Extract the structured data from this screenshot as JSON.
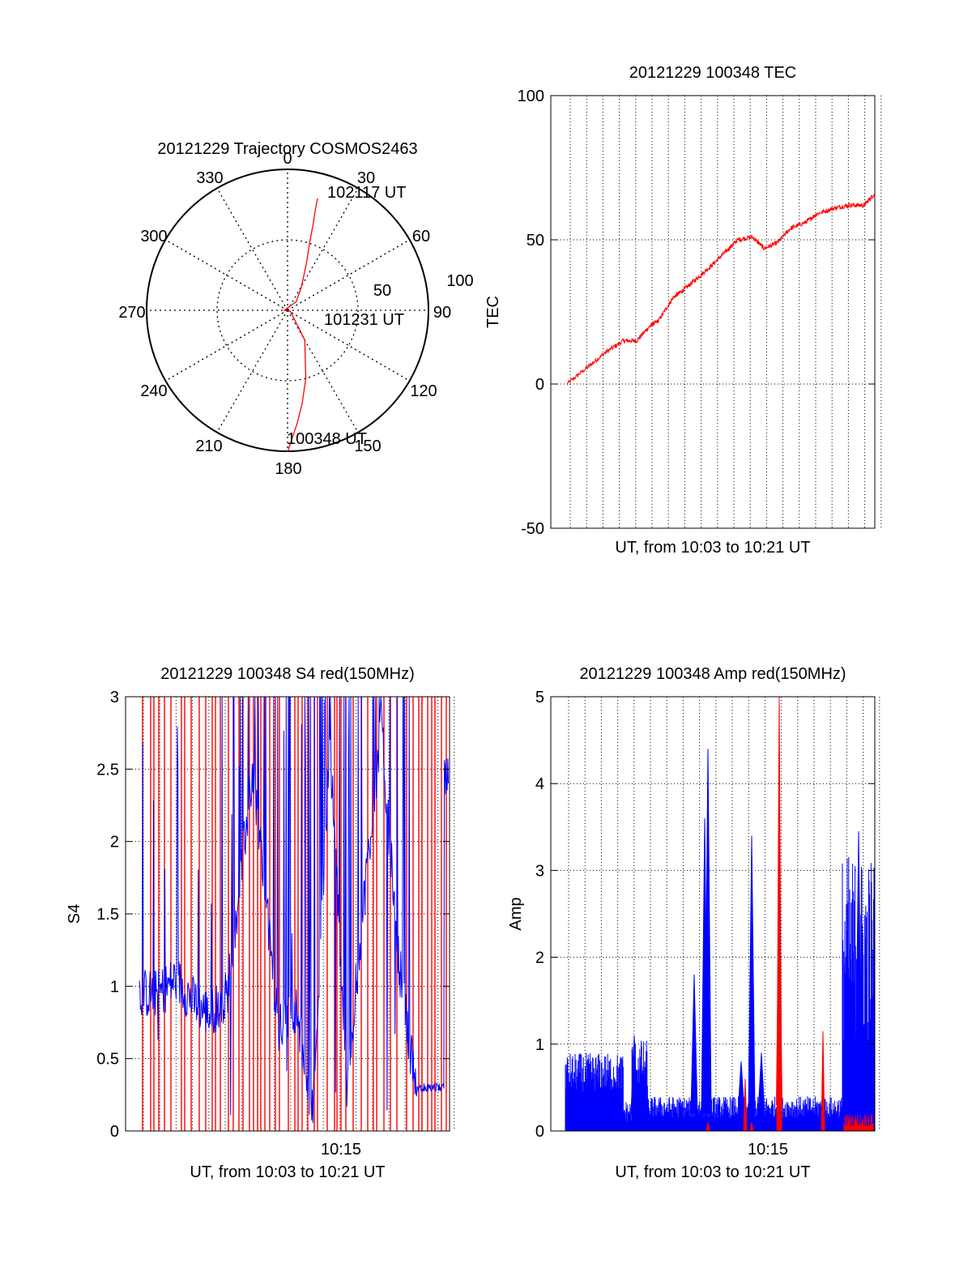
{
  "colors": {
    "red": "#ff0000",
    "blue": "#0000ff",
    "axis": "#000000"
  },
  "chart_data": [
    {
      "type": "scatter",
      "subtype": "polar",
      "title": "20121229 Trajectory COSMOS2463",
      "angle_labels": [
        "0",
        "30",
        "60",
        "90",
        "120",
        "150",
        "180",
        "210",
        "240",
        "270",
        "300",
        "330"
      ],
      "radius_labels": [
        "50",
        "100"
      ],
      "grid": true,
      "series": [
        {
          "color": "red",
          "azimuth_elevation": [
            [
              180,
              -0.4
            ],
            [
              178,
              8
            ],
            [
              175,
              18
            ],
            [
              171,
              30
            ],
            [
              165,
              45
            ],
            [
              150,
              68
            ],
            [
              110,
              88
            ],
            [
              90,
              92
            ],
            [
              45,
              82
            ],
            [
              30,
              72
            ],
            [
              22,
              58
            ],
            [
              18,
              44
            ],
            [
              16.5,
              32
            ],
            [
              15.5,
              24
            ],
            [
              15,
              16
            ]
          ]
        }
      ],
      "annotations": [
        "102117 UT",
        "101231 UT",
        "100348 UT"
      ]
    },
    {
      "type": "line",
      "title": "20121229 100348 TEC",
      "xlabel": "UT, from 10:03 to 10:21 UT",
      "ylabel": "TEC",
      "yticks": [
        "-50",
        "0",
        "50",
        "100"
      ],
      "ylim": [
        -50,
        100
      ],
      "xlim": [
        "10:03:48",
        "10:21:17"
      ],
      "grid": true,
      "series": [
        {
          "color": "red",
          "x": [
            "10:03:48",
            "10:05:00",
            "10:06:00",
            "10:07:00",
            "10:07:45",
            "10:08:30",
            "10:09:00",
            "10:09:50",
            "10:10:30",
            "10:11:15",
            "10:12:00",
            "10:12:50",
            "10:13:30",
            "10:14:20",
            "10:15:00",
            "10:15:45",
            "10:16:30",
            "10:17:20",
            "10:18:00",
            "10:19:00",
            "10:19:50",
            "10:20:40",
            "10:21:17"
          ],
          "y": [
            0,
            6,
            11,
            15,
            15,
            20,
            22,
            30,
            33,
            37,
            41,
            46,
            50,
            51,
            47,
            49,
            54,
            56,
            59,
            61,
            62,
            62,
            66
          ]
        }
      ]
    },
    {
      "type": "line",
      "title": "20121229 100348 S4 red(150MHz)",
      "xlabel": "UT, from 10:03 to 10:21 UT",
      "ylabel": "S4",
      "yticks": [
        "0",
        "0.5",
        "1",
        "1.5",
        "2",
        "2.5",
        "3"
      ],
      "xticks": [
        "10:15"
      ],
      "ylim": [
        0,
        3
      ],
      "xlim": [
        "10:03:00",
        "10:21:00"
      ],
      "grid": true,
      "series": [
        {
          "color": "red",
          "description": "red channel S4",
          "y_range": [
            0,
            3
          ]
        },
        {
          "color": "blue",
          "x": [
            "10:04:00",
            "10:05:00",
            "10:06:00",
            "10:07:00",
            "10:08:00",
            "10:09:30",
            "10:11:00",
            "10:12:00",
            "10:13:00",
            "10:14:00",
            "10:15:00",
            "10:16:00",
            "10:17:00",
            "10:18:00",
            "10:19:00",
            "10:20:00",
            "10:20:30"
          ],
          "y": [
            0.95,
            1.05,
            0.9,
            0.8,
            0.95,
            2.5,
            0.7,
            0.85,
            0.15,
            2.7,
            0.3,
            1.6,
            2.8,
            1.2,
            0.3,
            0.3,
            2.4
          ]
        }
      ]
    },
    {
      "type": "line",
      "title": "20121229 100348 Amp red(150MHz)",
      "xlabel": "UT, from 10:03 to 10:21 UT",
      "ylabel": "Amp",
      "yticks": [
        "0",
        "1",
        "2",
        "3",
        "4",
        "5"
      ],
      "xticks": [
        "10:15"
      ],
      "ylim": [
        0,
        5
      ],
      "xlim": [
        "10:03:00",
        "10:21:00"
      ],
      "grid": true,
      "series": [
        {
          "color": "blue",
          "peaks": [
            {
              "x": "10:11:30",
              "y": 4.4
            },
            {
              "x": "10:14:00",
              "y": 3.4
            },
            {
              "x": "10:10:20",
              "y": 1.8
            },
            {
              "x": "10:07:00",
              "y": 1.1
            },
            {
              "x": "10:20:00",
              "y": 3.4
            }
          ]
        },
        {
          "color": "red",
          "peaks": [
            {
              "x": "10:15:30",
              "y": 5.0
            },
            {
              "x": "10:18:15",
              "y": 1.15
            },
            {
              "x": "10:13:40",
              "y": 0.6
            }
          ]
        }
      ]
    }
  ]
}
